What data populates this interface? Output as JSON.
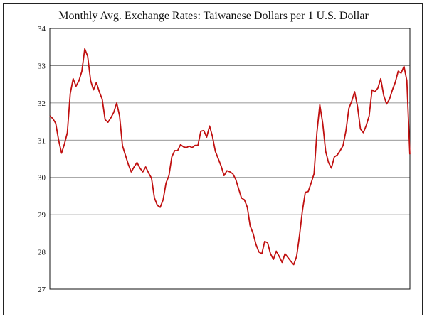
{
  "chart_data": {
    "type": "line",
    "title": "Monthly Avg. Exchange Rates: Taiwanese Dollars per 1 U.S. Dollar",
    "xlabel": "",
    "ylabel": "",
    "xlim": [
      2014.58,
      2024.92
    ],
    "ylim": [
      27,
      34
    ],
    "xticks": [
      16,
      18,
      20,
      22,
      24
    ],
    "yticks": [
      27,
      28,
      29,
      30,
      31,
      32,
      33,
      34
    ],
    "grid": true,
    "legend": "none",
    "line_color": "#c01010",
    "series": [
      {
        "x": [
          2014.583,
          2014.667,
          2014.75,
          2014.833,
          2014.917,
          2015.0,
          2015.083,
          2015.167,
          2015.25,
          2015.333,
          2015.417,
          2015.5,
          2015.583,
          2015.667,
          2015.75,
          2015.833,
          2015.917,
          2016.0,
          2016.083,
          2016.167,
          2016.25,
          2016.333,
          2016.417,
          2016.5,
          2016.583,
          2016.667,
          2016.75,
          2016.833,
          2016.917,
          2017.0,
          2017.083,
          2017.167,
          2017.25,
          2017.333,
          2017.417,
          2017.5,
          2017.583,
          2017.667,
          2017.75,
          2017.833,
          2017.917,
          2018.0,
          2018.083,
          2018.167,
          2018.25,
          2018.333,
          2018.417,
          2018.5,
          2018.583,
          2018.667,
          2018.75,
          2018.833,
          2018.917,
          2019.0,
          2019.083,
          2019.167,
          2019.25,
          2019.333,
          2019.417,
          2019.5,
          2019.583,
          2019.667,
          2019.75,
          2019.833,
          2019.917,
          2020.0,
          2020.083,
          2020.167,
          2020.25,
          2020.333,
          2020.417,
          2020.5,
          2020.583,
          2020.667,
          2020.75,
          2020.833,
          2020.917,
          2021.0,
          2021.083,
          2021.167,
          2021.25,
          2021.333,
          2021.417,
          2021.5,
          2021.583,
          2021.667,
          2021.75,
          2021.833,
          2021.917,
          2022.0,
          2022.083,
          2022.167,
          2022.25,
          2022.333,
          2022.417,
          2022.5,
          2022.583,
          2022.667,
          2022.75,
          2022.833,
          2022.917,
          2023.0,
          2023.083,
          2023.167,
          2023.25,
          2023.333,
          2023.417,
          2023.5,
          2023.583,
          2023.667,
          2023.75,
          2023.833,
          2023.917,
          2024.0,
          2024.083,
          2024.167,
          2024.25,
          2024.333,
          2024.417,
          2024.5,
          2024.583,
          2024.667,
          2024.75,
          2024.833,
          2024.917
        ],
        "values": [
          31.65,
          31.58,
          31.45,
          31.0,
          30.65,
          30.9,
          31.2,
          32.25,
          32.65,
          32.45,
          32.6,
          32.85,
          33.45,
          33.25,
          32.6,
          32.35,
          32.55,
          32.3,
          32.1,
          31.55,
          31.48,
          31.6,
          31.75,
          32.0,
          31.65,
          30.85,
          30.6,
          30.35,
          30.15,
          30.28,
          30.4,
          30.25,
          30.15,
          30.28,
          30.12,
          29.98,
          29.45,
          29.25,
          29.2,
          29.4,
          29.85,
          30.05,
          30.55,
          30.72,
          30.72,
          30.88,
          30.82,
          30.8,
          30.84,
          30.8,
          30.86,
          30.86,
          31.24,
          31.26,
          31.08,
          31.38,
          31.1,
          30.7,
          30.5,
          30.3,
          30.05,
          30.18,
          30.15,
          30.1,
          29.95,
          29.7,
          29.45,
          29.4,
          29.2,
          28.7,
          28.5,
          28.2,
          28.0,
          27.95,
          28.28,
          28.25,
          27.95,
          27.8,
          28.02,
          27.88,
          27.72,
          27.95,
          27.85,
          27.75,
          27.66,
          27.88,
          28.45,
          29.1,
          29.6,
          29.62,
          29.85,
          30.1,
          31.2,
          31.95,
          31.45,
          30.7,
          30.4,
          30.25,
          30.55,
          30.6,
          30.72,
          30.85,
          31.25,
          31.85,
          32.05,
          32.3,
          31.9,
          31.3,
          31.2,
          31.4,
          31.65,
          32.35,
          32.3,
          32.4,
          32.65,
          32.2,
          31.97,
          32.1,
          32.35,
          32.55,
          32.85,
          32.8,
          32.98,
          32.6,
          30.62
        ]
      }
    ]
  }
}
